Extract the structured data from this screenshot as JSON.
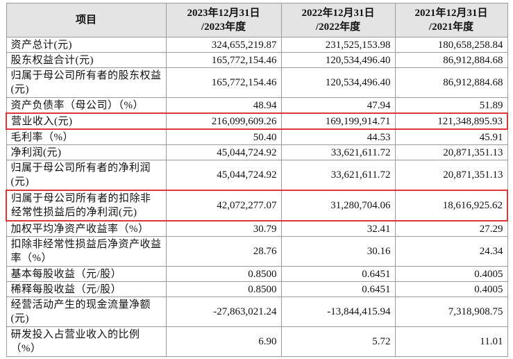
{
  "header": {
    "cells": [
      [
        "项目"
      ],
      [
        "2023年12月31日",
        "/2023年度"
      ],
      [
        "2022年12月31日",
        "/2022年度"
      ],
      [
        "2021年12月31日",
        "/2021年度"
      ]
    ]
  },
  "table": {
    "rows": [
      [
        "资产总计(元)",
        "324,655,219.87",
        "231,525,153.98",
        "180,658,258.84"
      ],
      [
        "股东权益合计(元)",
        "165,772,154.46",
        "120,534,496.40",
        "86,912,884.68"
      ],
      [
        "归属于母公司所有者的股东权益(元)",
        "165,772,154.46",
        "120,534,496.40",
        "86,912,884.68"
      ],
      [
        "资产负债率（母公司）（%）",
        "48.94",
        "47.94",
        "51.89"
      ],
      [
        "营业收入(元)",
        "216,099,609.26",
        "169,199,914.71",
        "121,348,895.93"
      ],
      [
        "毛利率（%）",
        "50.40",
        "44.53",
        "45.91"
      ],
      [
        "净利润(元)",
        "45,044,724.92",
        "33,621,611.72",
        "20,871,351.13"
      ],
      [
        "归属于母公司所有者的净利润(元)",
        "45,044,724.92",
        "33,621,611.72",
        "20,871,351.13"
      ],
      [
        "归属于母公司所有者的扣除非经常性损益后的净利润(元)",
        "42,072,277.07",
        "31,280,704.06",
        "18,616,925.62"
      ],
      [
        "加权平均净资产收益率（%）",
        "30.79",
        "32.41",
        "27.29"
      ],
      [
        "扣除非经常性损益后净资产收益率（%）",
        "28.76",
        "30.16",
        "24.34"
      ],
      [
        "基本每股收益（元/股）",
        "0.8500",
        "0.6451",
        "0.4005"
      ],
      [
        "稀释每股收益（元/股）",
        "0.8500",
        "0.6451",
        "0.4005"
      ],
      [
        "经营活动产生的现金流量净额(元)",
        "-27,863,021.24",
        "-13,844,415.94",
        "7,318,908.75"
      ],
      [
        "研发投入占营业收入的比例（%）",
        "6.90",
        "5.72",
        "11.01"
      ]
    ]
  }
}
